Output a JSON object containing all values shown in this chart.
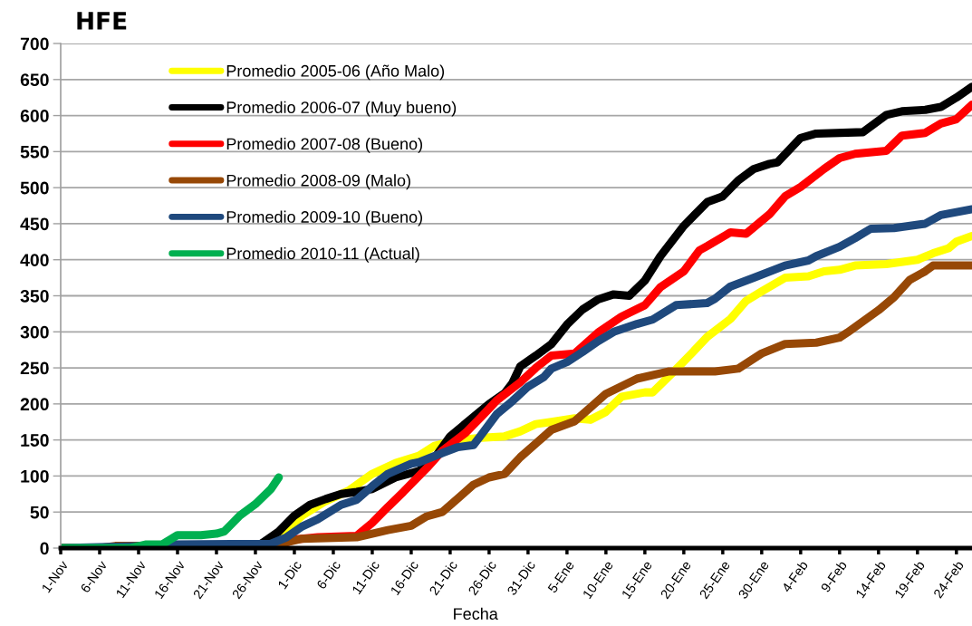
{
  "chart_data": {
    "type": "line",
    "title": "HFE",
    "xlabel": "Fecha",
    "xlim": [
      "2010-11-01",
      "2011-02-26"
    ],
    "xticks": [
      {
        "value": "2010-11-01",
        "label": "1-Nov"
      },
      {
        "value": "2010-11-06",
        "label": "6-Nov"
      },
      {
        "value": "2010-11-11",
        "label": "11-Nov"
      },
      {
        "value": "2010-11-16",
        "label": "16-Nov"
      },
      {
        "value": "2010-11-21",
        "label": "21-Nov"
      },
      {
        "value": "2010-11-26",
        "label": "26-Nov"
      },
      {
        "value": "2010-12-01",
        "label": "1-Dic"
      },
      {
        "value": "2010-12-06",
        "label": "6-Dic"
      },
      {
        "value": "2010-12-11",
        "label": "11-Dic"
      },
      {
        "value": "2010-12-16",
        "label": "16-Dic"
      },
      {
        "value": "2010-12-21",
        "label": "21-Dic"
      },
      {
        "value": "2010-12-26",
        "label": "26-Dic"
      },
      {
        "value": "2010-12-31",
        "label": "31-Dic"
      },
      {
        "value": "2011-01-05",
        "label": "5-Ene"
      },
      {
        "value": "2011-01-10",
        "label": "10-Ene"
      },
      {
        "value": "2011-01-15",
        "label": "15-Ene"
      },
      {
        "value": "2011-01-20",
        "label": "20-Ene"
      },
      {
        "value": "2011-01-25",
        "label": "25-Ene"
      },
      {
        "value": "2011-01-30",
        "label": "30-Ene"
      },
      {
        "value": "2011-02-04",
        "label": "4-Feb"
      },
      {
        "value": "2011-02-09",
        "label": "9-Feb"
      },
      {
        "value": "2011-02-14",
        "label": "14-Feb"
      },
      {
        "value": "2011-02-19",
        "label": "19-Feb"
      },
      {
        "value": "2011-02-24",
        "label": "24-Feb"
      }
    ],
    "ylim": [
      0,
      700
    ],
    "yticks": [
      0,
      50,
      100,
      150,
      200,
      250,
      300,
      350,
      400,
      450,
      500,
      550,
      600,
      650,
      700
    ],
    "grid": "y",
    "legend": "top left",
    "series": [
      {
        "name": "Promedio 2005-06 (Año Malo)",
        "color": "#ffff00",
        "x": [
          "2010-11-01",
          "2010-11-26",
          "2010-11-29",
          "2010-12-02",
          "2010-12-05",
          "2010-12-08",
          "2010-12-11",
          "2010-12-14",
          "2010-12-17",
          "2010-12-19",
          "2010-12-22",
          "2010-12-25",
          "2010-12-28",
          "2010-12-30",
          "2011-01-01",
          "2011-01-03",
          "2011-01-06",
          "2011-01-08",
          "2011-01-10",
          "2011-01-12",
          "2011-01-15",
          "2011-01-16",
          "2011-01-19",
          "2011-01-21",
          "2011-01-23",
          "2011-01-26",
          "2011-01-28",
          "2011-01-30",
          "2011-02-02",
          "2011-02-05",
          "2011-02-07",
          "2011-02-09",
          "2011-02-11",
          "2011-02-15",
          "2011-02-19",
          "2011-02-21",
          "2011-02-23",
          "2011-02-24",
          "2011-02-26"
        ],
        "values": [
          0,
          0,
          15,
          45,
          65,
          80,
          103,
          118,
          128,
          142,
          150,
          153,
          155,
          162,
          172,
          175,
          180,
          178,
          189,
          210,
          216,
          216,
          248,
          270,
          293,
          318,
          343,
          356,
          375,
          377,
          384,
          386,
          392,
          394,
          400,
          409,
          416,
          425,
          433
        ]
      },
      {
        "name": "Promedio 2006-07 (Muy bueno)",
        "color": "#000000",
        "x": [
          "2010-11-01",
          "2010-11-26",
          "2010-11-27",
          "2010-11-29",
          "2010-12-01",
          "2010-12-03",
          "2010-12-05",
          "2010-12-07",
          "2010-12-09",
          "2010-12-11",
          "2010-12-14",
          "2010-12-17",
          "2010-12-19",
          "2010-12-21",
          "2010-12-24",
          "2010-12-26",
          "2010-12-28",
          "2010-12-29",
          "2010-12-30",
          "2011-01-01",
          "2011-01-03",
          "2011-01-05",
          "2011-01-07",
          "2011-01-09",
          "2011-01-11",
          "2011-01-13",
          "2011-01-15",
          "2011-01-17",
          "2011-01-20",
          "2011-01-23",
          "2011-01-25",
          "2011-01-27",
          "2011-01-29",
          "2011-01-31",
          "2011-02-01",
          "2011-02-04",
          "2011-02-06",
          "2011-02-12",
          "2011-02-15",
          "2011-02-17",
          "2011-02-20",
          "2011-02-22",
          "2011-02-24",
          "2011-02-26"
        ],
        "values": [
          0,
          0,
          8,
          23,
          45,
          60,
          68,
          75,
          78,
          82,
          98,
          107,
          125,
          155,
          182,
          200,
          215,
          229,
          252,
          267,
          283,
          310,
          331,
          345,
          352,
          350,
          371,
          405,
          447,
          480,
          488,
          510,
          526,
          533,
          535,
          569,
          575,
          577,
          601,
          606,
          608,
          612,
          625,
          640
        ]
      },
      {
        "name": "Promedio 2007-08 (Bueno)",
        "color": "#ff0000",
        "x": [
          "2010-11-01",
          "2010-11-28",
          "2010-12-01",
          "2010-12-04",
          "2010-12-09",
          "2010-12-11",
          "2010-12-13",
          "2010-12-15",
          "2010-12-18",
          "2010-12-20",
          "2010-12-23",
          "2010-12-25",
          "2010-12-27",
          "2010-12-30",
          "2011-01-01",
          "2011-01-03",
          "2011-01-06",
          "2011-01-09",
          "2011-01-12",
          "2011-01-15",
          "2011-01-17",
          "2011-01-20",
          "2011-01-22",
          "2011-01-23",
          "2011-01-26",
          "2011-01-28",
          "2011-01-31",
          "2011-02-02",
          "2011-02-04",
          "2011-02-07",
          "2011-02-09",
          "2011-02-11",
          "2011-02-15",
          "2011-02-17",
          "2011-02-20",
          "2011-02-22",
          "2011-02-24",
          "2011-02-26"
        ],
        "values": [
          0,
          0,
          12,
          15,
          17,
          35,
          57,
          78,
          111,
          135,
          160,
          182,
          205,
          230,
          250,
          267,
          270,
          299,
          321,
          337,
          362,
          384,
          413,
          419,
          438,
          436,
          463,
          488,
          501,
          526,
          541,
          547,
          551,
          572,
          576,
          589,
          595,
          615
        ]
      },
      {
        "name": "Promedio 2008-09 (Malo)",
        "color": "#974806",
        "x": [
          "2010-11-01",
          "2010-11-06",
          "2010-11-08",
          "2010-11-11",
          "2010-11-13",
          "2010-11-28",
          "2010-11-30",
          "2010-12-02",
          "2010-12-09",
          "2010-12-13",
          "2010-12-16",
          "2010-12-18",
          "2010-12-20",
          "2010-12-22",
          "2010-12-24",
          "2010-12-26",
          "2010-12-28",
          "2010-12-30",
          "2011-01-01",
          "2011-01-03",
          "2011-01-06",
          "2011-01-08",
          "2011-01-10",
          "2011-01-14",
          "2011-01-18",
          "2011-01-24",
          "2011-01-27",
          "2011-01-30",
          "2011-02-02",
          "2011-02-06",
          "2011-02-09",
          "2011-02-10",
          "2011-02-14",
          "2011-02-16",
          "2011-02-18",
          "2011-02-20",
          "2011-02-21",
          "2011-02-26"
        ],
        "values": [
          0,
          0,
          3,
          3,
          0,
          0,
          8,
          13,
          15,
          25,
          31,
          44,
          50,
          69,
          88,
          98,
          103,
          126,
          145,
          164,
          176,
          195,
          214,
          235,
          245,
          245,
          249,
          270,
          283,
          285,
          292,
          299,
          330,
          348,
          372,
          384,
          392,
          392
        ]
      },
      {
        "name": "Promedio 2009-10 (Bueno)",
        "color": "#1f497d",
        "x": [
          "2010-11-01",
          "2010-11-13",
          "2010-11-15",
          "2010-11-28",
          "2010-11-30",
          "2010-12-02",
          "2010-12-04",
          "2010-12-07",
          "2010-12-09",
          "2010-12-11",
          "2010-12-13",
          "2010-12-16",
          "2010-12-17",
          "2010-12-20",
          "2010-12-22",
          "2010-12-24",
          "2010-12-25",
          "2010-12-27",
          "2010-12-29",
          "2010-12-31",
          "2011-01-02",
          "2011-01-03",
          "2011-01-05",
          "2011-01-07",
          "2011-01-09",
          "2011-01-11",
          "2011-01-14",
          "2011-01-16",
          "2011-01-19",
          "2011-01-23",
          "2011-01-24",
          "2011-01-26",
          "2011-01-29",
          "2011-02-02",
          "2011-02-05",
          "2011-02-06",
          "2011-02-09",
          "2011-02-11",
          "2011-02-13",
          "2011-02-16",
          "2011-02-20",
          "2011-02-22",
          "2011-02-26"
        ],
        "values": [
          0,
          3,
          5,
          6,
          15,
          30,
          40,
          60,
          67,
          86,
          103,
          117,
          119,
          132,
          140,
          143,
          157,
          186,
          204,
          224,
          237,
          249,
          258,
          272,
          287,
          300,
          311,
          317,
          337,
          340,
          346,
          363,
          375,
          392,
          399,
          405,
          418,
          430,
          443,
          444,
          450,
          462,
          470
        ]
      },
      {
        "name": "Promedio 2010-11 (Actual)",
        "color": "#00b050",
        "x": [
          "2010-11-01",
          "2010-11-10",
          "2010-11-12",
          "2010-11-14",
          "2010-11-16",
          "2010-11-19",
          "2010-11-21",
          "2010-11-22",
          "2010-11-24",
          "2010-11-26",
          "2010-11-28",
          "2010-11-29"
        ],
        "values": [
          0,
          0,
          5,
          5,
          18,
          18,
          20,
          23,
          45,
          61,
          82,
          98
        ]
      }
    ]
  }
}
